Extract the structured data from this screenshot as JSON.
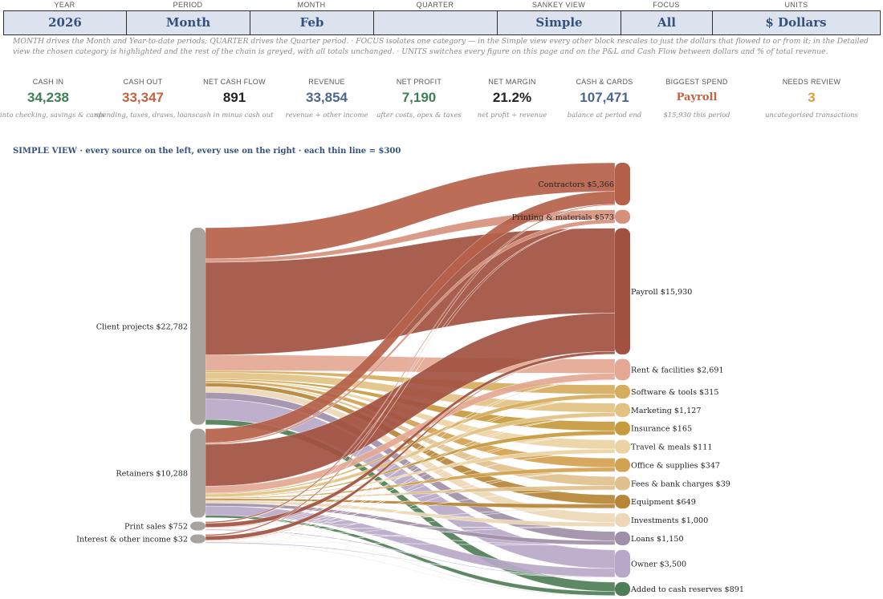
{
  "filters": [
    {
      "label": "YEAR",
      "value": "2026"
    },
    {
      "label": "PERIOD",
      "value": "Month"
    },
    {
      "label": "MONTH",
      "value": "Feb"
    },
    {
      "label": "QUARTER",
      "value": ""
    },
    {
      "label": "SANKEY VIEW",
      "value": "Simple"
    },
    {
      "label": "FOCUS",
      "value": "All"
    },
    {
      "label": "UNITS",
      "value": "$ Dollars"
    }
  ],
  "note": "MONTH drives the Month and Year-to-date periods; QUARTER drives the Quarter period.   ·   FOCUS isolates one category — in the Simple view every other block rescales to just the dollars that flowed to or from it; in the Detailed view the chosen category is highlighted and the rest of the chain is greyed, with all totals unchanged.   ·   UNITS switches every figure on this page and on the P&L and Cash Flow between dollars and % of total revenue.",
  "kpis": [
    {
      "label": "CASH IN",
      "value": "34,238",
      "sub": "into checking, savings & cards",
      "color": "#3d7f52"
    },
    {
      "label": "CASH OUT",
      "value": "33,347",
      "sub": "spending, taxes, draws, loans",
      "color": "#c6623d"
    },
    {
      "label": "NET CASH FLOW",
      "value": "891",
      "sub": "cash in minus cash out",
      "color": "#222222"
    },
    {
      "label": "REVENUE",
      "value": "33,854",
      "sub": "revenue + other income",
      "color": "#4a6691"
    },
    {
      "label": "NET PROFIT",
      "value": "7,190",
      "sub": "after costs, opex & taxes",
      "color": "#3d7f52"
    },
    {
      "label": "NET MARGIN",
      "value": "21.2%",
      "sub": "net profit ÷ revenue",
      "color": "#222222"
    },
    {
      "label": "CASH & CARDS",
      "value": "107,471",
      "sub": "balance at period end",
      "color": "#4a6691"
    },
    {
      "label": "BIGGEST SPEND",
      "value": "Payroll",
      "sub": "$15,930 this period",
      "color": "#c6623d"
    },
    {
      "label": "NEEDS REVIEW",
      "value": "3",
      "sub": "uncategorised transactions",
      "color": "#dc9a3a"
    }
  ],
  "section_title": "SIMPLE VIEW  ·  every source on the left, every use on the right  ·  each thin line = $300",
  "chart_data": {
    "type": "sankey",
    "sources": [
      {
        "name": "Client projects",
        "value": 22782,
        "label": "Client projects  $22,782"
      },
      {
        "name": "Retainers",
        "value": 10288,
        "label": "Retainers  $10,288"
      },
      {
        "name": "Print sales",
        "value": 752,
        "label": "Print sales  $752"
      },
      {
        "name": "Interest & other income",
        "value": 32,
        "label": "Interest & other income  $32"
      }
    ],
    "targets": [
      {
        "name": "Contractors",
        "value": 5366,
        "label": "Contractors  $5,366",
        "color": "#b5614a"
      },
      {
        "name": "Printing & materials",
        "value": 573,
        "label": "Printing & materials  $573",
        "color": "#d6917d"
      },
      {
        "name": "Payroll",
        "value": 15930,
        "label": "Payroll  $15,930",
        "color": "#a25140"
      },
      {
        "name": "Rent & facilities",
        "value": 2691,
        "label": "Rent & facilities  $2,691",
        "color": "#e4a894"
      },
      {
        "name": "Software & tools",
        "value": 315,
        "label": "Software & tools  $315",
        "color": "#d6ad5c"
      },
      {
        "name": "Marketing",
        "value": 1127,
        "label": "Marketing  $1,127",
        "color": "#e2c282"
      },
      {
        "name": "Insurance",
        "value": 165,
        "label": "Insurance  $165",
        "color": "#c79a3c"
      },
      {
        "name": "Travel & meals",
        "value": 111,
        "label": "Travel & meals  $111",
        "color": "#ebd3a3"
      },
      {
        "name": "Office & supplies",
        "value": 347,
        "label": "Office & supplies  $347",
        "color": "#d3a250"
      },
      {
        "name": "Fees & bank charges",
        "value": 39,
        "label": "Fees & bank charges  $39",
        "color": "#dfc18d"
      },
      {
        "name": "Equipment",
        "value": 649,
        "label": "Equipment  $649",
        "color": "#b78636"
      },
      {
        "name": "Investments",
        "value": 1000,
        "label": "Investments  $1,000",
        "color": "#ecd8b6"
      },
      {
        "name": "Loans",
        "value": 1150,
        "label": "Loans  $1,150",
        "color": "#9f8fa8"
      },
      {
        "name": "Owner",
        "value": 3500,
        "label": "Owner  $3,500",
        "color": "#b8a8c8"
      },
      {
        "name": "Added to cash reserves",
        "value": 891,
        "label": "Added to cash reserves  $891",
        "color": "#4e7e56"
      }
    ],
    "source_color": "#a8a39c",
    "unit_per_line": 300
  }
}
